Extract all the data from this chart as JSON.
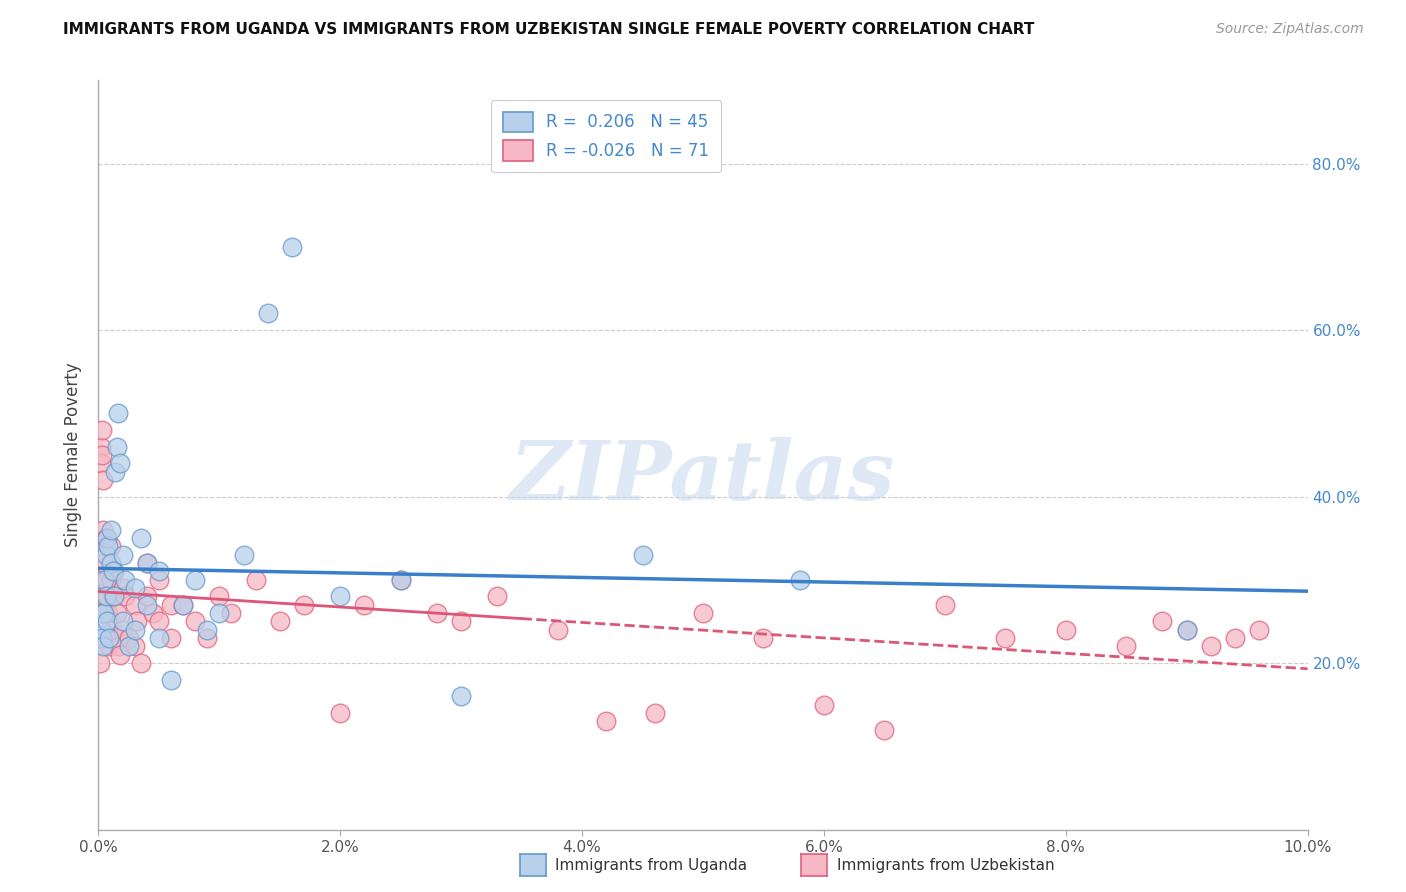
{
  "title": "IMMIGRANTS FROM UGANDA VS IMMIGRANTS FROM UZBEKISTAN SINGLE FEMALE POVERTY CORRELATION CHART",
  "source": "Source: ZipAtlas.com",
  "ylabel": "Single Female Poverty",
  "legend_label_blue": "Immigrants from Uganda",
  "legend_label_pink": "Immigrants from Uzbekistan",
  "legend_r_blue": "R =  0.206   N = 45",
  "legend_r_pink": "R = -0.026   N = 71",
  "watermark": "ZIPatlas",
  "color_blue_fill": "#b8d0ea",
  "color_pink_fill": "#f5b8c4",
  "color_blue_edge": "#6699cc",
  "color_pink_edge": "#e06080",
  "color_blue_line": "#3a7fcc",
  "color_pink_line": "#dd5577",
  "color_right_axis": "#4488cc",
  "right_ytick_labels": [
    "20.0%",
    "40.0%",
    "60.0%",
    "80.0%"
  ],
  "right_ytick_values": [
    0.2,
    0.4,
    0.6,
    0.8
  ],
  "xlim": [
    0.0,
    0.1
  ],
  "ylim": [
    0.0,
    0.9
  ],
  "uganda_x": [
    0.0002,
    0.0003,
    0.0004,
    0.0004,
    0.0005,
    0.0005,
    0.0006,
    0.0006,
    0.0007,
    0.0007,
    0.0008,
    0.0009,
    0.001,
    0.001,
    0.0012,
    0.0013,
    0.0014,
    0.0015,
    0.0016,
    0.0018,
    0.002,
    0.002,
    0.0022,
    0.0025,
    0.003,
    0.003,
    0.0035,
    0.004,
    0.004,
    0.005,
    0.005,
    0.006,
    0.007,
    0.008,
    0.009,
    0.01,
    0.012,
    0.014,
    0.016,
    0.02,
    0.025,
    0.03,
    0.045,
    0.058,
    0.09
  ],
  "uganda_y": [
    0.24,
    0.23,
    0.26,
    0.22,
    0.3,
    0.26,
    0.33,
    0.28,
    0.35,
    0.25,
    0.34,
    0.23,
    0.36,
    0.32,
    0.31,
    0.28,
    0.43,
    0.46,
    0.5,
    0.44,
    0.33,
    0.25,
    0.3,
    0.22,
    0.29,
    0.24,
    0.35,
    0.32,
    0.27,
    0.31,
    0.23,
    0.18,
    0.27,
    0.3,
    0.24,
    0.26,
    0.33,
    0.62,
    0.7,
    0.28,
    0.3,
    0.16,
    0.33,
    0.3,
    0.24
  ],
  "uzbekistan_x": [
    0.0001,
    0.0002,
    0.0002,
    0.0003,
    0.0003,
    0.0004,
    0.0004,
    0.0005,
    0.0005,
    0.0006,
    0.0006,
    0.0007,
    0.0007,
    0.0008,
    0.0009,
    0.001,
    0.001,
    0.001,
    0.0012,
    0.0012,
    0.0013,
    0.0014,
    0.0015,
    0.0016,
    0.0017,
    0.0018,
    0.002,
    0.002,
    0.0022,
    0.0025,
    0.003,
    0.003,
    0.0032,
    0.0035,
    0.004,
    0.004,
    0.0045,
    0.005,
    0.005,
    0.006,
    0.006,
    0.007,
    0.008,
    0.009,
    0.01,
    0.011,
    0.013,
    0.015,
    0.017,
    0.02,
    0.022,
    0.025,
    0.028,
    0.03,
    0.033,
    0.038,
    0.042,
    0.046,
    0.05,
    0.055,
    0.06,
    0.065,
    0.07,
    0.075,
    0.08,
    0.085,
    0.088,
    0.09,
    0.092,
    0.094,
    0.096
  ],
  "uzbekistan_y": [
    0.2,
    0.46,
    0.44,
    0.48,
    0.45,
    0.42,
    0.36,
    0.32,
    0.28,
    0.35,
    0.3,
    0.3,
    0.28,
    0.26,
    0.22,
    0.34,
    0.3,
    0.25,
    0.28,
    0.24,
    0.31,
    0.28,
    0.26,
    0.23,
    0.22,
    0.21,
    0.29,
    0.24,
    0.28,
    0.23,
    0.27,
    0.22,
    0.25,
    0.2,
    0.32,
    0.28,
    0.26,
    0.3,
    0.25,
    0.27,
    0.23,
    0.27,
    0.25,
    0.23,
    0.28,
    0.26,
    0.3,
    0.25,
    0.27,
    0.14,
    0.27,
    0.3,
    0.26,
    0.25,
    0.28,
    0.24,
    0.13,
    0.14,
    0.26,
    0.23,
    0.15,
    0.12,
    0.27,
    0.23,
    0.24,
    0.22,
    0.25,
    0.24,
    0.22,
    0.23,
    0.24
  ]
}
